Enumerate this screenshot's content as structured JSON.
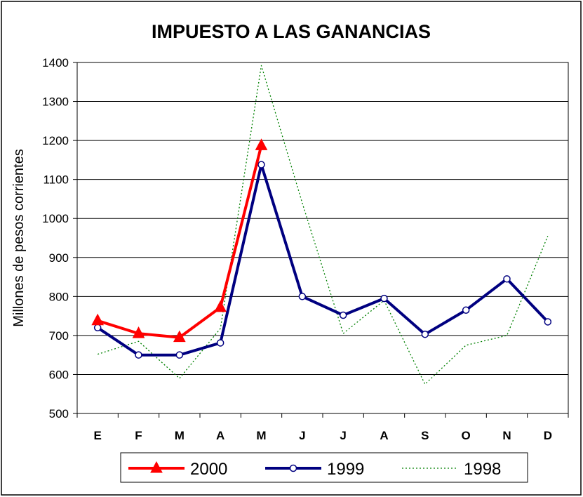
{
  "chart_data": {
    "type": "line",
    "title": "IMPUESTO A LAS GANANCIAS",
    "xlabel": "",
    "ylabel": "Millones de pesos corrientes",
    "categories": [
      "E",
      "F",
      "M",
      "A",
      "M",
      "J",
      "J",
      "A",
      "S",
      "O",
      "N",
      "D"
    ],
    "ylim": [
      500,
      1400
    ],
    "yticks": [
      500,
      600,
      700,
      800,
      900,
      1000,
      1100,
      1200,
      1300,
      1400
    ],
    "grid": true,
    "legend": "bottom",
    "series": [
      {
        "name": "2000",
        "color": "#ff0000",
        "marker": "triangle",
        "style": "solid-thick",
        "values": [
          738,
          705,
          695,
          772,
          1187,
          null,
          null,
          null,
          null,
          null,
          null,
          null
        ]
      },
      {
        "name": "1999",
        "color": "#000080",
        "marker": "circle",
        "style": "solid-thick",
        "values": [
          720,
          650,
          650,
          681,
          1138,
          800,
          752,
          795,
          703,
          765,
          845,
          735
        ]
      },
      {
        "name": "1998",
        "color": "#008000",
        "marker": "none",
        "style": "dotted",
        "values": [
          652,
          685,
          590,
          718,
          1392,
          1040,
          705,
          790,
          575,
          675,
          700,
          955
        ]
      }
    ]
  }
}
